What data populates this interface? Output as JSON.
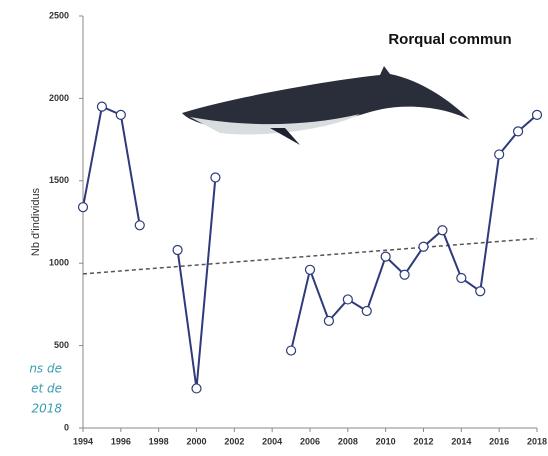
{
  "chart_data": {
    "type": "line",
    "title": "Rorqual commun",
    "y_label": "Nb d'individus",
    "x": [
      1994,
      1995,
      1996,
      1997,
      1998,
      1999,
      2000,
      2001,
      2002,
      2003,
      2004,
      2005,
      2006,
      2007,
      2008,
      2009,
      2010,
      2011,
      2012,
      2013,
      2014,
      2015,
      2016,
      2017,
      2018
    ],
    "series": [
      {
        "color": "#2e3a7a",
        "values": [
          1340,
          1950,
          1900,
          1230,
          null,
          1080,
          240,
          1520,
          null,
          null,
          null,
          470,
          960,
          650,
          780,
          710,
          1040,
          930,
          1100,
          1200,
          910,
          830,
          1660,
          1800,
          1900
        ]
      }
    ],
    "trend": {
      "x": [
        1994,
        2018
      ],
      "values": [
        935,
        1150
      ],
      "color": "#555555"
    },
    "xlim": [
      1994,
      2018
    ],
    "xticks": [
      1994,
      1996,
      1998,
      2000,
      2002,
      2004,
      2006,
      2008,
      2010,
      2012,
      2014,
      2016,
      2018
    ],
    "ylim": [
      0,
      2500
    ],
    "yticks": [
      0,
      500,
      1000,
      1500,
      2000,
      2500
    ],
    "grid": false
  },
  "side_text": [
    "ns de",
    "et de",
    "2018"
  ]
}
